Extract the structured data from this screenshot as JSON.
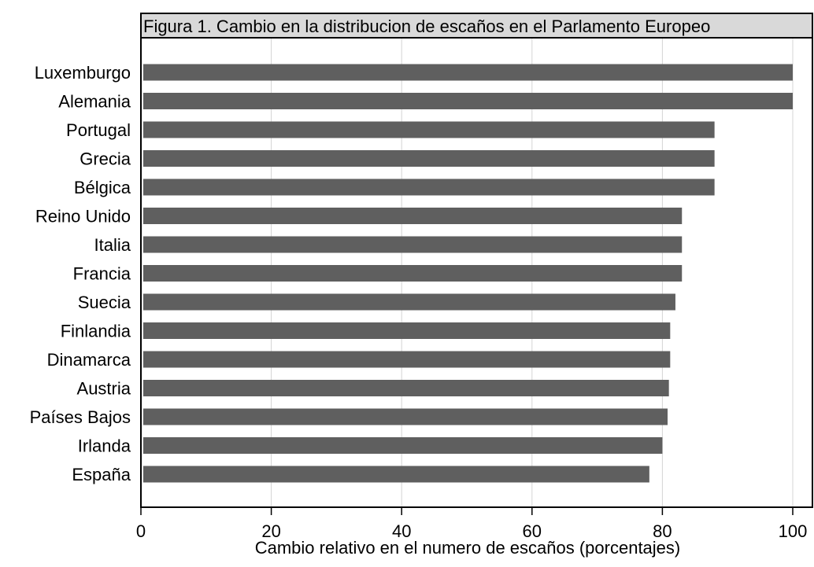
{
  "chart_data": {
    "type": "bar",
    "orientation": "horizontal",
    "title": "Figura 1. Cambio en la distribucion de escaños en el Parlamento Europeo",
    "xlabel": "Cambio relativo en el numero de escaños (porcentajes)",
    "ylabel": "",
    "xlim": [
      0,
      100
    ],
    "xticks": [
      "0",
      "20",
      "40",
      "60",
      "80",
      "100"
    ],
    "grid": true,
    "categories": [
      "Luxemburgo",
      "Alemania",
      "Portugal",
      "Grecia",
      "Bélgica",
      "Reino Unido",
      "Italia",
      "Francia",
      "Suecia",
      "Finlandia",
      "Dinamarca",
      "Austria",
      "Países Bajos",
      "Irlanda",
      "España"
    ],
    "values": [
      100,
      100,
      88,
      88,
      88,
      83,
      83,
      83,
      82,
      81.2,
      81.2,
      81,
      80.8,
      80,
      78
    ],
    "colors": {
      "bar": "#5f5f5f",
      "title_bg": "#d9d9d9",
      "grid": "#d4d4d4"
    }
  }
}
